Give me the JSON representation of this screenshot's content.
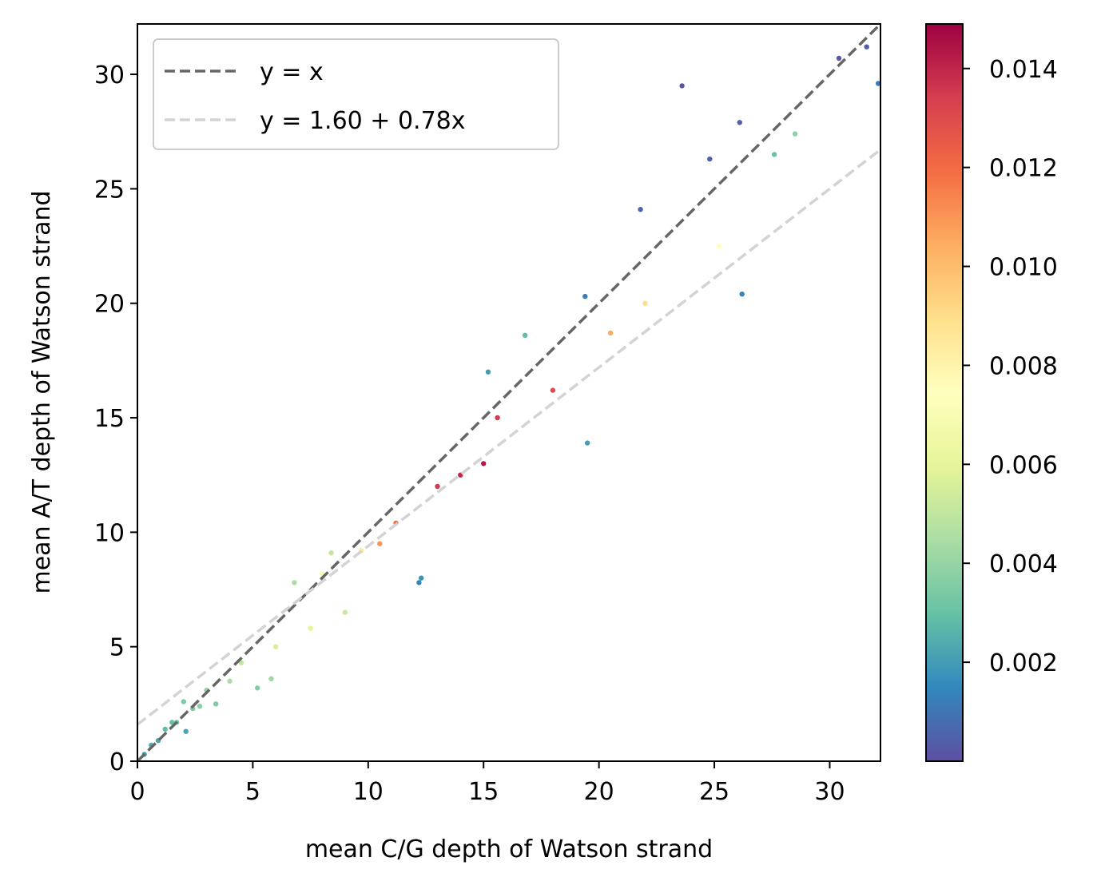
{
  "chart_data": {
    "type": "scatter",
    "title": "",
    "xlabel": "mean C/G depth of Watson strand",
    "ylabel": "mean A/T depth of Watson strand",
    "xlim": [
      0,
      32.2
    ],
    "ylim": [
      0,
      32.2
    ],
    "x_ticks": [
      0,
      5,
      10,
      15,
      20,
      25,
      30
    ],
    "y_ticks": [
      0,
      5,
      10,
      15,
      20,
      25,
      30
    ],
    "grid": false,
    "legend_position": "top-left",
    "colormap": "Spectral_r",
    "colorbar": {
      "range": [
        0.0,
        0.0149
      ],
      "ticks": [
        "0.002",
        "0.004",
        "0.006",
        "0.008",
        "0.010",
        "0.012",
        "0.014"
      ],
      "tick_values": [
        0.002,
        0.004,
        0.006,
        0.008,
        0.01,
        0.012,
        0.014
      ]
    },
    "lines": [
      {
        "name": "y = x",
        "intercept": 0,
        "slope": 1,
        "color": "#666666",
        "style": "dashed"
      },
      {
        "name": "y = 1.60 + 0.78x",
        "intercept": 1.6,
        "slope": 0.78,
        "color": "#d3d3d3",
        "style": "dashed"
      }
    ],
    "series": [
      {
        "points": [
          [
            0.3,
            0.3,
            0.0022
          ],
          [
            0.6,
            0.7,
            0.0025
          ],
          [
            0.9,
            0.9,
            0.0022
          ],
          [
            1.2,
            1.4,
            0.0028
          ],
          [
            1.5,
            1.7,
            0.003
          ],
          [
            1.7,
            1.7,
            0.0032
          ],
          [
            2.0,
            2.6,
            0.0035
          ],
          [
            2.1,
            1.3,
            0.0022
          ],
          [
            2.4,
            2.3,
            0.0035
          ],
          [
            2.7,
            2.4,
            0.0038
          ],
          [
            3.0,
            3.1,
            0.004
          ],
          [
            3.4,
            2.5,
            0.0035
          ],
          [
            4.0,
            3.5,
            0.0045
          ],
          [
            4.5,
            4.3,
            0.005
          ],
          [
            5.2,
            3.2,
            0.0036
          ],
          [
            5.8,
            3.6,
            0.0042
          ],
          [
            6.0,
            5.0,
            0.0055
          ],
          [
            6.8,
            7.8,
            0.0045
          ],
          [
            7.5,
            5.8,
            0.006
          ],
          [
            8.0,
            8.2,
            0.007
          ],
          [
            8.4,
            9.1,
            0.005
          ],
          [
            9.0,
            6.5,
            0.0052
          ],
          [
            9.7,
            9.2,
            0.0085
          ],
          [
            10.5,
            9.5,
            0.011
          ],
          [
            11.2,
            10.4,
            0.012
          ],
          [
            12.2,
            7.8,
            0.0015
          ],
          [
            12.3,
            8.0,
            0.0018
          ],
          [
            13.0,
            12.0,
            0.0135
          ],
          [
            14.0,
            12.5,
            0.014
          ],
          [
            15.0,
            13.0,
            0.0143
          ],
          [
            15.2,
            17.0,
            0.002
          ],
          [
            15.6,
            15.0,
            0.0135
          ],
          [
            16.8,
            18.6,
            0.0028
          ],
          [
            18.0,
            16.2,
            0.013
          ],
          [
            19.4,
            20.3,
            0.0012
          ],
          [
            19.5,
            13.9,
            0.002
          ],
          [
            20.5,
            18.7,
            0.0105
          ],
          [
            21.8,
            24.1,
            0.0006
          ],
          [
            22.0,
            20.0,
            0.009
          ],
          [
            23.6,
            29.5,
            0.0002
          ],
          [
            24.8,
            26.3,
            0.0005
          ],
          [
            25.2,
            22.5,
            0.0075
          ],
          [
            26.1,
            27.9,
            0.0004
          ],
          [
            26.2,
            20.4,
            0.0014
          ],
          [
            27.6,
            26.5,
            0.003
          ],
          [
            28.5,
            27.4,
            0.0038
          ],
          [
            30.4,
            30.7,
            0.0002
          ],
          [
            31.6,
            31.2,
            0.0004
          ],
          [
            32.1,
            29.6,
            0.0012
          ]
        ]
      }
    ]
  }
}
